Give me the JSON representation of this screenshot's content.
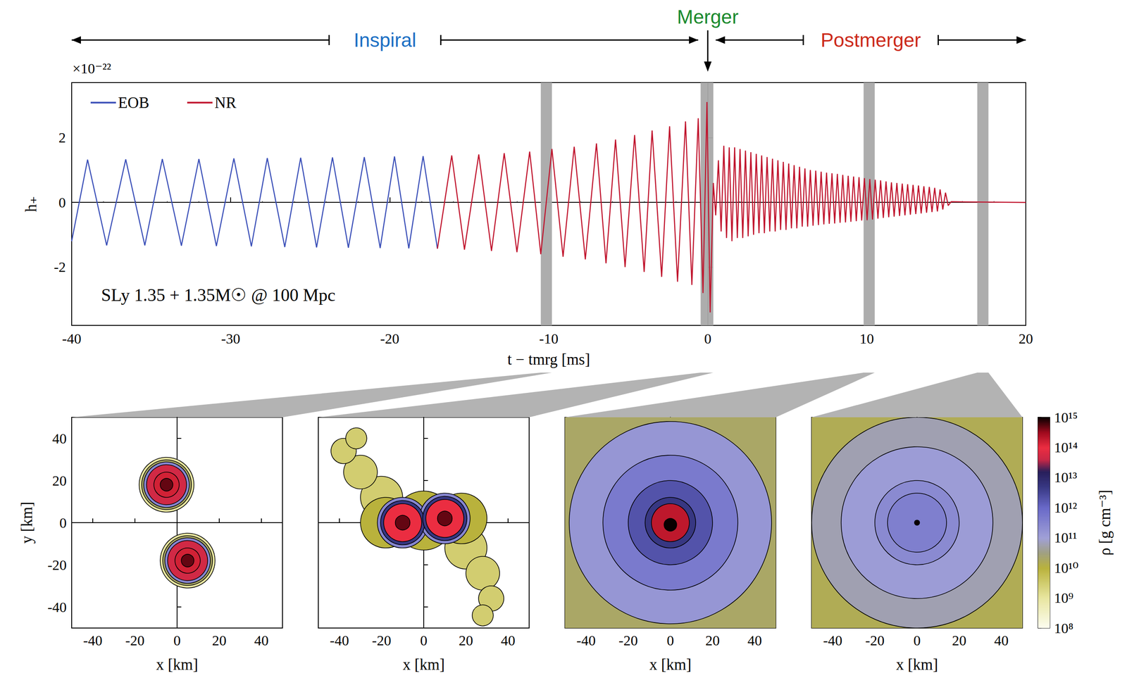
{
  "chart_data": [
    {
      "type": "line",
      "xlabel": "t − tmrg [ms]",
      "ylabel": "h₊",
      "scale_label": "×10⁻²²",
      "annotation": "SLy 1.35 + 1.35M☉ @ 100 Mpc",
      "xlim": [
        -40,
        20
      ],
      "xticks": [
        -40,
        -30,
        -20,
        -10,
        0,
        10,
        20
      ],
      "ylim": [
        -3.8,
        3.7
      ],
      "yticks": [
        -2,
        0,
        2
      ],
      "legend": "upper left",
      "phases": [
        {
          "label": "Inspiral",
          "color": "#1a6fc4",
          "start": -40,
          "end": -0.6
        },
        {
          "label": "Merger",
          "color": "#1a8a2e",
          "start": 0,
          "end": 0
        },
        {
          "label": "Postmerger",
          "color": "#cc2a1a",
          "start": 0.5,
          "end": 20
        }
      ],
      "bands": [
        [
          -10.5,
          -9.8
        ],
        [
          -0.45,
          0.35
        ],
        [
          9.8,
          10.5
        ],
        [
          16.95,
          17.65
        ]
      ],
      "series": [
        {
          "name": "EOB",
          "color": "#3a4fb8",
          "points": [
            [
              -40.0,
              -1.2
            ],
            [
              -39.0,
              1.32
            ],
            [
              -37.8,
              -1.33
            ],
            [
              -36.6,
              1.33
            ],
            [
              -35.4,
              -1.33
            ],
            [
              -34.3,
              1.34
            ],
            [
              -33.1,
              -1.34
            ],
            [
              -32.0,
              1.34
            ],
            [
              -30.9,
              -1.35
            ],
            [
              -29.8,
              1.36
            ],
            [
              -28.7,
              -1.36
            ],
            [
              -27.7,
              1.37
            ],
            [
              -26.6,
              -1.38
            ],
            [
              -25.6,
              1.38
            ],
            [
              -24.6,
              -1.39
            ],
            [
              -23.6,
              1.39
            ],
            [
              -22.6,
              -1.4
            ],
            [
              -21.6,
              1.4
            ],
            [
              -20.6,
              -1.41
            ],
            [
              -19.7,
              1.42
            ],
            [
              -18.8,
              -1.42
            ],
            [
              -17.9,
              1.43
            ],
            [
              -17.0,
              -1.43
            ]
          ]
        },
        {
          "name": "NR",
          "color": "#c0142d",
          "points": [
            [
              -17.0,
              -1.43
            ],
            [
              -16.1,
              1.45
            ],
            [
              -15.3,
              -1.46
            ],
            [
              -14.4,
              1.48
            ],
            [
              -13.6,
              -1.5
            ],
            [
              -12.8,
              1.52
            ],
            [
              -12.0,
              -1.54
            ],
            [
              -11.2,
              1.57
            ],
            [
              -10.5,
              -1.6
            ],
            [
              -9.8,
              1.65
            ],
            [
              -9.1,
              -1.68
            ],
            [
              -8.4,
              1.72
            ],
            [
              -7.7,
              -1.76
            ],
            [
              -7.0,
              1.82
            ],
            [
              -6.4,
              -1.88
            ],
            [
              -5.8,
              1.94
            ],
            [
              -5.2,
              -2.0
            ],
            [
              -4.6,
              2.08
            ],
            [
              -4.0,
              -2.15
            ],
            [
              -3.5,
              2.22
            ],
            [
              -2.9,
              -2.3
            ],
            [
              -2.4,
              2.35
            ],
            [
              -1.9,
              -2.45
            ],
            [
              -1.4,
              2.5
            ],
            [
              -1.0,
              -2.55
            ],
            [
              -0.6,
              2.6
            ],
            [
              -0.3,
              -2.8
            ],
            [
              -0.05,
              3.1
            ],
            [
              0.15,
              -3.4
            ],
            [
              0.35,
              0.6
            ],
            [
              0.5,
              -0.4
            ],
            [
              0.67,
              1.3
            ],
            [
              0.84,
              -0.9
            ],
            [
              1.01,
              1.75
            ],
            [
              1.18,
              -1.1
            ],
            [
              1.35,
              1.7
            ],
            [
              1.52,
              -1.2
            ],
            [
              1.69,
              1.7
            ],
            [
              1.86,
              -1.1
            ],
            [
              2.03,
              1.65
            ],
            [
              2.2,
              -1.1
            ],
            [
              2.37,
              1.6
            ],
            [
              2.54,
              -1.05
            ],
            [
              2.71,
              1.55
            ],
            [
              2.88,
              -1.0
            ],
            [
              3.05,
              1.5
            ],
            [
              3.22,
              -0.95
            ],
            [
              3.39,
              1.45
            ],
            [
              3.56,
              -0.95
            ],
            [
              3.73,
              1.4
            ],
            [
              3.9,
              -0.9
            ],
            [
              4.07,
              1.35
            ],
            [
              4.24,
              -0.9
            ],
            [
              4.41,
              1.3
            ],
            [
              4.58,
              -0.85
            ],
            [
              4.75,
              1.25
            ],
            [
              4.92,
              -0.85
            ],
            [
              5.09,
              1.2
            ],
            [
              5.26,
              -0.8
            ],
            [
              5.43,
              1.15
            ],
            [
              5.6,
              -0.8
            ],
            [
              5.77,
              1.1
            ],
            [
              5.94,
              -0.75
            ],
            [
              6.11,
              1.05
            ],
            [
              6.28,
              -0.75
            ],
            [
              6.45,
              1.0
            ],
            [
              6.62,
              -0.72
            ],
            [
              6.79,
              0.98
            ],
            [
              6.96,
              -0.7
            ],
            [
              7.13,
              0.95
            ],
            [
              7.3,
              -0.68
            ],
            [
              7.47,
              0.92
            ],
            [
              7.64,
              -0.66
            ],
            [
              7.81,
              0.9
            ],
            [
              7.98,
              -0.65
            ],
            [
              8.15,
              0.88
            ],
            [
              8.32,
              -0.63
            ],
            [
              8.49,
              0.85
            ],
            [
              8.66,
              -0.62
            ],
            [
              8.83,
              0.82
            ],
            [
              9.0,
              -0.6
            ],
            [
              9.17,
              0.8
            ],
            [
              9.34,
              -0.58
            ],
            [
              9.51,
              0.78
            ],
            [
              9.68,
              -0.56
            ],
            [
              9.85,
              0.75
            ],
            [
              10.02,
              -0.55
            ],
            [
              10.19,
              0.72
            ],
            [
              10.36,
              -0.53
            ],
            [
              10.53,
              0.7
            ],
            [
              10.7,
              -0.5
            ],
            [
              10.87,
              0.68
            ],
            [
              11.04,
              -0.48
            ],
            [
              11.21,
              0.65
            ],
            [
              11.38,
              -0.46
            ],
            [
              11.55,
              0.62
            ],
            [
              11.72,
              -0.44
            ],
            [
              11.89,
              0.6
            ],
            [
              12.06,
              -0.42
            ],
            [
              12.23,
              0.58
            ],
            [
              12.4,
              -0.4
            ],
            [
              12.57,
              0.56
            ],
            [
              12.74,
              -0.38
            ],
            [
              12.91,
              0.54
            ],
            [
              13.08,
              -0.36
            ],
            [
              13.25,
              0.52
            ],
            [
              13.42,
              -0.34
            ],
            [
              13.59,
              0.5
            ],
            [
              13.76,
              -0.32
            ],
            [
              13.93,
              0.48
            ],
            [
              14.1,
              -0.3
            ],
            [
              14.27,
              0.45
            ],
            [
              14.44,
              -0.28
            ],
            [
              14.61,
              0.4
            ],
            [
              14.78,
              -0.22
            ],
            [
              14.95,
              0.3
            ],
            [
              15.12,
              -0.1
            ],
            [
              15.3,
              0.02
            ],
            [
              20.0,
              0.0
            ]
          ]
        }
      ]
    },
    {
      "type": "density",
      "xlabel": "x [km]",
      "ylabel": "y [km]",
      "tick_labels": true,
      "xlim": [
        -50,
        50
      ],
      "xticks": [
        -40,
        -20,
        0,
        20,
        40
      ],
      "ylim": [
        -50,
        50
      ],
      "yticks": [
        -40,
        -20,
        0,
        20,
        40
      ],
      "blobs": [
        {
          "x": -5,
          "y": 18,
          "r": 13,
          "rho": 1000000000.0
        },
        {
          "x": -5,
          "y": 18,
          "r": 11.8,
          "rho": 20000000000.0
        },
        {
          "x": -5,
          "y": 18,
          "r": 10.8,
          "rho": 300000000000.0
        },
        {
          "x": -5,
          "y": 18,
          "r": 9.5,
          "rho": 50000000000000.0
        },
        {
          "x": -5,
          "y": 18,
          "r": 6,
          "rho": 150000000000000.0
        },
        {
          "x": -5,
          "y": 18,
          "r": 3,
          "rho": 500000000000000.0
        },
        {
          "x": 5,
          "y": -18,
          "r": 13,
          "rho": 1000000000.0
        },
        {
          "x": 5,
          "y": -18,
          "r": 11.8,
          "rho": 20000000000.0
        },
        {
          "x": 5,
          "y": -18,
          "r": 10.8,
          "rho": 300000000000.0
        },
        {
          "x": 5,
          "y": -18,
          "r": 9.5,
          "rho": 50000000000000.0
        },
        {
          "x": 5,
          "y": -18,
          "r": 6,
          "rho": 150000000000000.0
        },
        {
          "x": 5,
          "y": -18,
          "r": 3,
          "rho": 500000000000000.0
        }
      ]
    },
    {
      "type": "density",
      "xlabel": "x [km]",
      "tick_labels": "x",
      "xlim": [
        -50,
        50
      ],
      "xticks": [
        -40,
        -20,
        0,
        20,
        40
      ],
      "ylim": [
        -50,
        50
      ],
      "yticks": [
        -40,
        -20,
        0,
        20,
        40
      ],
      "blobs": [
        {
          "x": -20,
          "y": 12,
          "r": 10,
          "rho": 3000000000.0
        },
        {
          "x": -30,
          "y": 24,
          "r": 8,
          "rho": 3000000000.0
        },
        {
          "x": -38,
          "y": 34,
          "r": 6,
          "rho": 3000000000.0
        },
        {
          "x": -32,
          "y": 40,
          "r": 5,
          "rho": 3000000000.0
        },
        {
          "x": 20,
          "y": -12,
          "r": 10,
          "rho": 3000000000.0
        },
        {
          "x": 28,
          "y": -24,
          "r": 8,
          "rho": 3000000000.0
        },
        {
          "x": 32,
          "y": -36,
          "r": 6,
          "rho": 3000000000.0
        },
        {
          "x": 28,
          "y": -44,
          "r": 5,
          "rho": 3000000000.0
        },
        {
          "x": -18,
          "y": 0,
          "r": 12,
          "rho": 10000000000.0
        },
        {
          "x": 18,
          "y": 2,
          "r": 12,
          "rho": 10000000000.0
        },
        {
          "x": 0,
          "y": 1,
          "r": 14,
          "rho": 10000000000.0
        },
        {
          "x": -10,
          "y": 0,
          "r": 12,
          "rho": 300000000000.0
        },
        {
          "x": 10,
          "y": 2,
          "r": 12,
          "rho": 300000000000.0
        },
        {
          "x": -10,
          "y": 0,
          "r": 10.5,
          "rho": 5000000000000.0
        },
        {
          "x": 10,
          "y": 2,
          "r": 10.5,
          "rho": 5000000000000.0
        },
        {
          "x": -10,
          "y": 0,
          "r": 9,
          "rho": 100000000000000.0
        },
        {
          "x": 10,
          "y": 2,
          "r": 9,
          "rho": 100000000000000.0
        },
        {
          "x": -10,
          "y": 0,
          "r": 3.5,
          "rho": 500000000000000.0
        },
        {
          "x": 10,
          "y": 2,
          "r": 3.5,
          "rho": 500000000000000.0
        }
      ]
    },
    {
      "type": "density",
      "xlabel": "x [km]",
      "tick_labels": "x",
      "xlim": [
        -50,
        50
      ],
      "xticks": [
        -40,
        -20,
        0,
        20,
        40
      ],
      "ylim": [
        -50,
        50
      ],
      "yticks": [
        -40,
        -20,
        0,
        20,
        40
      ],
      "blobs": [
        {
          "x": 0,
          "y": 0,
          "r": 100,
          "rho": 20000000000.0
        },
        {
          "x": 0,
          "y": 0,
          "r": 48,
          "rho": 150000000000.0
        },
        {
          "x": 0,
          "y": 0,
          "r": 32,
          "rho": 500000000000.0
        },
        {
          "x": 0,
          "y": 0,
          "r": 20,
          "rho": 2000000000000.0
        },
        {
          "x": 0,
          "y": 0,
          "r": 12,
          "rho": 5000000000000.0
        },
        {
          "x": 0,
          "y": 0,
          "r": 9,
          "rho": 200000000000000.0
        },
        {
          "x": 0,
          "y": -1,
          "r": 3,
          "rho": 1000000000000000.0
        }
      ]
    },
    {
      "type": "density",
      "xlabel": "x [km]",
      "tick_labels": "x",
      "xlim": [
        -50,
        50
      ],
      "xticks": [
        -40,
        -20,
        0,
        20,
        40
      ],
      "ylim": [
        -50,
        50
      ],
      "yticks": [
        -40,
        -20,
        0,
        20,
        40
      ],
      "blobs": [
        {
          "x": 0,
          "y": 0,
          "r": 100,
          "rho": 15000000000.0
        },
        {
          "x": 0,
          "y": 0,
          "r": 50,
          "rho": 60000000000.0
        },
        {
          "x": 0,
          "y": 0,
          "r": 36,
          "rho": 120000000000.0
        },
        {
          "x": 0,
          "y": 0,
          "r": 20,
          "rho": 250000000000.0
        },
        {
          "x": 0,
          "y": 0,
          "r": 14,
          "rho": 400000000000.0
        },
        {
          "x": 0,
          "y": 0,
          "r": 1.2,
          "rho": 1000000000000000.0
        }
      ]
    },
    {
      "type": "colorbar",
      "ylabel": "ρ [g cm⁻³]",
      "log": "y",
      "ylim": [
        100000000.0,
        1000000000000000.0
      ],
      "yticks": [
        {
          "value": 100000000.0,
          "label": "10⁸"
        },
        {
          "value": 1000000000.0,
          "label": "10⁹"
        },
        {
          "value": 10000000000.0,
          "label": "10¹⁰"
        },
        {
          "value": 100000000000.0,
          "label": "10¹¹"
        },
        {
          "value": 1000000000000.0,
          "label": "10¹²"
        },
        {
          "value": 10000000000000.0,
          "label": "10¹³"
        },
        {
          "value": 100000000000000.0,
          "label": "10¹⁴"
        },
        {
          "value": 1000000000000000.0,
          "label": "10¹⁵"
        }
      ]
    }
  ]
}
